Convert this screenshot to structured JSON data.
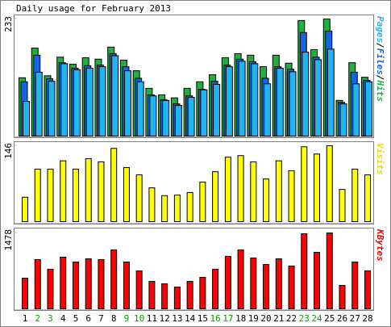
{
  "chart_data": {
    "type": "bar",
    "title": "Daily usage for February 2013",
    "categories": [
      1,
      2,
      3,
      4,
      5,
      6,
      7,
      8,
      9,
      10,
      11,
      12,
      13,
      14,
      15,
      16,
      17,
      18,
      19,
      20,
      21,
      22,
      23,
      24,
      25,
      26,
      27,
      28
    ],
    "weekend_categories": [
      2,
      3,
      9,
      10,
      16,
      17,
      23,
      24
    ],
    "weekday_color": "#000000",
    "weekend_color": "#00a000",
    "legend_separator": "/",
    "panels": [
      {
        "ylim": [
          0,
          233
        ],
        "yticks": [
          233
        ],
        "series": [
          {
            "name": "Hits",
            "color": "#20b040",
            "values": [
              116,
              175,
              120,
              157,
              143,
              156,
              153,
              177,
              151,
              130,
              95,
              82,
              76,
              95,
              108,
              122,
              156,
              164,
              161,
              138,
              161,
              145,
              230,
              172,
              233,
              71,
              146,
              117
            ]
          },
          {
            "name": "Files",
            "color": "#1464e6",
            "values": [
              108,
              161,
              114,
              146,
              135,
              140,
              141,
              164,
              138,
              115,
              82,
              72,
              64,
              80,
              93,
              109,
              141,
              153,
              148,
              115,
              138,
              133,
              206,
              157,
              209,
              67,
              127,
              111
            ]
          },
          {
            "name": "Pages",
            "color": "#20b4f0",
            "values": [
              69,
              127,
              109,
              144,
              132,
              135,
              138,
              160,
              130,
              108,
              80,
              71,
              61,
              77,
              92,
              103,
              138,
              149,
              144,
              104,
              135,
              128,
              167,
              152,
              173,
              64,
              104,
              108
            ]
          }
        ]
      },
      {
        "ylim": [
          0,
          146
        ],
        "yticks": [
          146
        ],
        "series": [
          {
            "name": "Visits",
            "color": "#ffff00",
            "values": [
              47,
              101,
              101,
              117,
              101,
              121,
              115,
              141,
              104,
              90,
              65,
              50,
              51,
              56,
              76,
              96,
              124,
              127,
              115,
              82,
              117,
              98,
              144,
              130,
              146,
              62,
              101,
              90
            ]
          }
        ]
      },
      {
        "ylim": [
          0,
          1478
        ],
        "yticks": [
          1478
        ],
        "series": [
          {
            "name": "KBytes",
            "color": "#ff0000",
            "values": [
              597,
              959,
              770,
              1006,
              911,
              974,
              959,
              1147,
              911,
              739,
              534,
              487,
              424,
              534,
              613,
              770,
              1022,
              1147,
              990,
              864,
              974,
              833,
              1462,
              1100,
              1478,
              456,
              911,
              739
            ]
          }
        ]
      }
    ]
  }
}
